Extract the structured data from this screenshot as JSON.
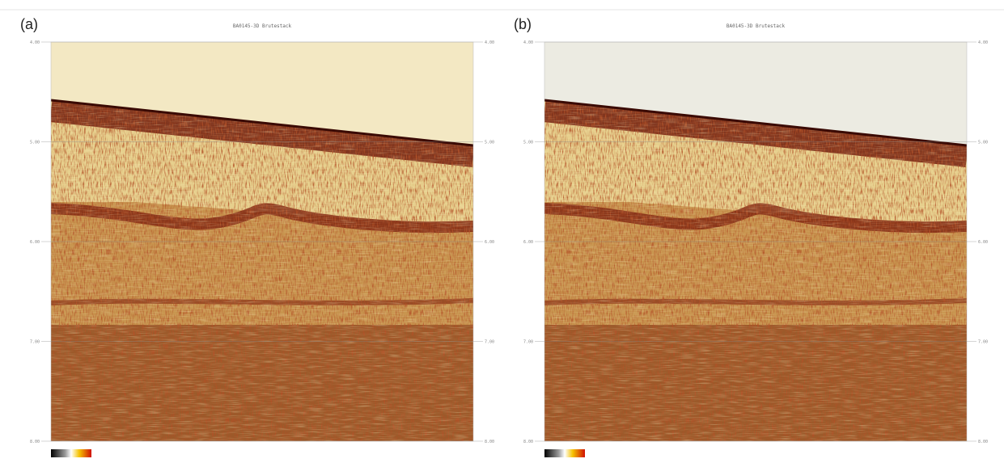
{
  "panels": [
    {
      "label": "(a)",
      "title": "BA0145-3D Brutestack",
      "ticks": [
        "4.00",
        "5.00",
        "6.00",
        "7.00",
        "8.00"
      ]
    },
    {
      "label": "(b)",
      "title": "BA0145-3D Brutestack",
      "ticks": [
        "4.00",
        "5.00",
        "6.00",
        "7.00",
        "8.00"
      ]
    }
  ]
}
